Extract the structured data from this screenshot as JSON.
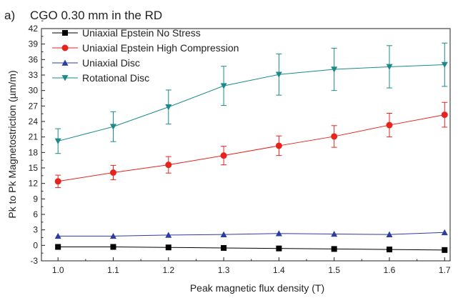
{
  "panel_label": "a)",
  "chart_data": {
    "type": "line",
    "title": "CGO 0.30 mm in the RD",
    "xlabel": "Peak magnetic flux density (T)",
    "ylabel": "Pk to Pk Magnetostriction (µm/m)",
    "xlim": [
      0.97,
      1.71
    ],
    "ylim": [
      -3,
      42
    ],
    "x_ticks": [
      "1.0",
      "1.1",
      "1.2",
      "1.3",
      "1.4",
      "1.5",
      "1.6",
      "1.7"
    ],
    "y_ticks": [
      "-3",
      "0",
      "3",
      "6",
      "9",
      "12",
      "15",
      "18",
      "21",
      "24",
      "27",
      "30",
      "33",
      "36",
      "39",
      "42"
    ],
    "grid": false,
    "legend_position": "top-left",
    "x": [
      1.0,
      1.1,
      1.2,
      1.3,
      1.4,
      1.5,
      1.6,
      1.7
    ],
    "series": [
      {
        "name": "Uniaxial Epstein No Stress",
        "color": "#000000",
        "marker": "square",
        "values": [
          -0.3,
          -0.3,
          -0.4,
          -0.5,
          -0.6,
          -0.7,
          -0.8,
          -0.9
        ],
        "error": [
          0,
          0,
          0,
          0,
          0,
          0,
          0,
          0
        ]
      },
      {
        "name": "Uniaxial Epstein High Compression",
        "color": "#e8231c",
        "marker": "circle",
        "values": [
          12.4,
          14.1,
          15.6,
          17.4,
          19.3,
          21.1,
          23.3,
          25.3
        ],
        "error": [
          1.2,
          1.4,
          1.6,
          1.8,
          1.9,
          2.1,
          2.3,
          2.4
        ]
      },
      {
        "name": "Uniaxial Disc",
        "color": "#2e3ca0",
        "marker": "triangle-up",
        "values": [
          1.8,
          1.8,
          2.0,
          2.1,
          2.3,
          2.2,
          2.1,
          2.5
        ],
        "error": [
          0,
          0,
          0,
          0,
          0,
          0,
          0,
          0
        ]
      },
      {
        "name": "Rotational Disc",
        "color": "#1c8a8a",
        "marker": "triangle-down",
        "values": [
          20.2,
          23.0,
          26.8,
          30.9,
          33.1,
          34.1,
          34.6,
          35.0
        ],
        "error": [
          2.4,
          2.9,
          3.3,
          3.8,
          4.0,
          4.1,
          4.1,
          4.2
        ]
      }
    ]
  }
}
